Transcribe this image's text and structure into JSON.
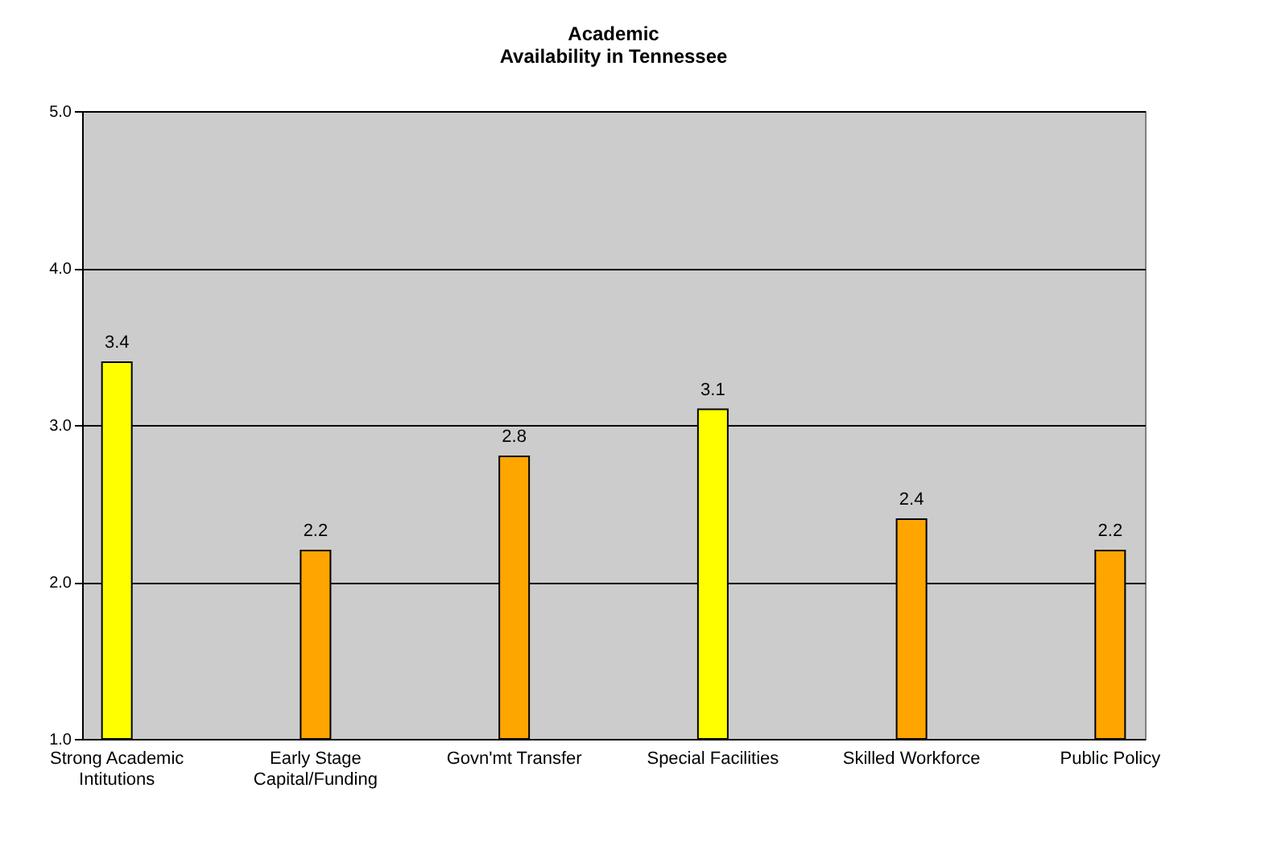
{
  "chart_data": {
    "type": "bar",
    "title": "Academic\nAvailability in Tennessee",
    "categories": [
      "Strong Academic Intitutions",
      "Early Stage Capital/Funding",
      "Govn'mt Transfer",
      "Special Facilities",
      "Skilled Workforce",
      "Public Policy"
    ],
    "values": [
      3.4,
      2.2,
      2.8,
      3.1,
      2.4,
      2.2
    ],
    "colors": [
      "#ffff00",
      "#ffa500",
      "#ffa500",
      "#ffff00",
      "#ffa500",
      "#ffa500"
    ],
    "ylim": [
      1,
      5
    ],
    "yticks": [
      {
        "value": 1,
        "label": "1.0"
      },
      {
        "value": 2,
        "label": "2.0"
      },
      {
        "value": 3,
        "label": "3.0"
      },
      {
        "value": 4,
        "label": "4.0"
      },
      {
        "value": 5,
        "label": "5.0"
      }
    ],
    "grid": "y",
    "data_labels": true
  }
}
